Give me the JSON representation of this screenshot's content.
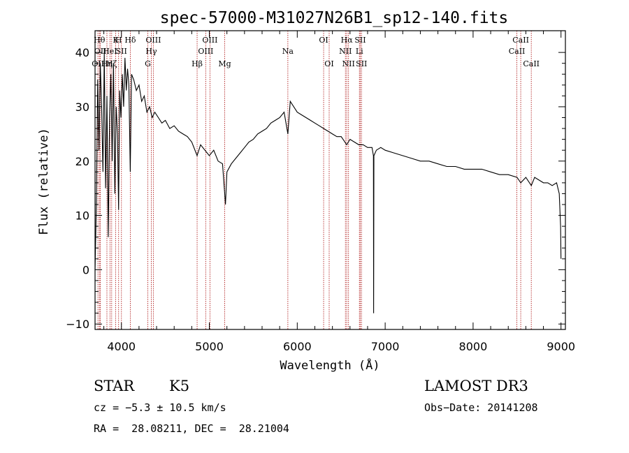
{
  "chart_data": {
    "type": "line",
    "title": "spec-57000-M31027N26B1_sp12-140.fits",
    "xlabel": "Wavelength (Å)",
    "ylabel": "Flux (relative)",
    "xlim": [
      3700,
      9050
    ],
    "ylim": [
      -11,
      44
    ],
    "xticks": [
      4000,
      5000,
      6000,
      7000,
      8000,
      9000
    ],
    "yticks": [
      -10,
      0,
      10,
      20,
      30,
      40
    ],
    "grid": false,
    "series": [
      {
        "values_xy": [
          [
            3700,
            0
          ],
          [
            3715,
            12
          ],
          [
            3730,
            35
          ],
          [
            3745,
            22
          ],
          [
            3760,
            38
          ],
          [
            3775,
            30
          ],
          [
            3790,
            18
          ],
          [
            3805,
            40
          ],
          [
            3820,
            15
          ],
          [
            3835,
            32
          ],
          [
            3850,
            6
          ],
          [
            3865,
            28
          ],
          [
            3880,
            36
          ],
          [
            3895,
            20
          ],
          [
            3910,
            38
          ],
          [
            3925,
            14
          ],
          [
            3940,
            30
          ],
          [
            3955,
            25
          ],
          [
            3968,
            11
          ],
          [
            3980,
            33
          ],
          [
            3995,
            28
          ],
          [
            4010,
            36
          ],
          [
            4025,
            30
          ],
          [
            4040,
            39
          ],
          [
            4055,
            33
          ],
          [
            4070,
            37
          ],
          [
            4085,
            34
          ],
          [
            4101,
            18
          ],
          [
            4115,
            36
          ],
          [
            4140,
            35
          ],
          [
            4170,
            33
          ],
          [
            4200,
            34
          ],
          [
            4230,
            31
          ],
          [
            4260,
            32
          ],
          [
            4290,
            29
          ],
          [
            4320,
            30
          ],
          [
            4350,
            28
          ],
          [
            4380,
            29
          ],
          [
            4420,
            28
          ],
          [
            4460,
            27
          ],
          [
            4500,
            27.5
          ],
          [
            4550,
            26
          ],
          [
            4600,
            26.5
          ],
          [
            4650,
            25.5
          ],
          [
            4700,
            25
          ],
          [
            4750,
            24.5
          ],
          [
            4800,
            23.5
          ],
          [
            4861,
            21
          ],
          [
            4900,
            23
          ],
          [
            4950,
            22
          ],
          [
            5000,
            21
          ],
          [
            5050,
            22
          ],
          [
            5100,
            20
          ],
          [
            5150,
            19.5
          ],
          [
            5175,
            14
          ],
          [
            5183,
            12
          ],
          [
            5200,
            18
          ],
          [
            5250,
            19.5
          ],
          [
            5300,
            20.5
          ],
          [
            5350,
            21.5
          ],
          [
            5400,
            22.5
          ],
          [
            5450,
            23.5
          ],
          [
            5500,
            24
          ],
          [
            5550,
            25
          ],
          [
            5600,
            25.5
          ],
          [
            5650,
            26
          ],
          [
            5700,
            27
          ],
          [
            5750,
            27.5
          ],
          [
            5800,
            28
          ],
          [
            5850,
            29
          ],
          [
            5893,
            25
          ],
          [
            5920,
            31
          ],
          [
            5960,
            30
          ],
          [
            6000,
            29
          ],
          [
            6050,
            28.5
          ],
          [
            6100,
            28
          ],
          [
            6150,
            27.5
          ],
          [
            6200,
            27
          ],
          [
            6250,
            26.5
          ],
          [
            6300,
            26
          ],
          [
            6350,
            25.5
          ],
          [
            6400,
            25
          ],
          [
            6450,
            24.5
          ],
          [
            6500,
            24.5
          ],
          [
            6563,
            23
          ],
          [
            6600,
            24
          ],
          [
            6650,
            23.5
          ],
          [
            6700,
            23
          ],
          [
            6750,
            23
          ],
          [
            6800,
            22.5
          ],
          [
            6850,
            22.5
          ],
          [
            6866,
            21
          ],
          [
            6869,
            -8
          ],
          [
            6872,
            21
          ],
          [
            6900,
            22
          ],
          [
            6950,
            22.5
          ],
          [
            7000,
            22
          ],
          [
            7100,
            21.5
          ],
          [
            7200,
            21
          ],
          [
            7300,
            20.5
          ],
          [
            7400,
            20
          ],
          [
            7500,
            20
          ],
          [
            7600,
            19.5
          ],
          [
            7700,
            19
          ],
          [
            7800,
            19
          ],
          [
            7900,
            18.5
          ],
          [
            8000,
            18.5
          ],
          [
            8100,
            18.5
          ],
          [
            8200,
            18
          ],
          [
            8300,
            17.5
          ],
          [
            8400,
            17.5
          ],
          [
            8500,
            17
          ],
          [
            8542,
            16
          ],
          [
            8600,
            17
          ],
          [
            8662,
            15.5
          ],
          [
            8700,
            17
          ],
          [
            8750,
            16.5
          ],
          [
            8800,
            16
          ],
          [
            8850,
            16
          ],
          [
            8900,
            15.5
          ],
          [
            8950,
            16
          ],
          [
            8980,
            14
          ],
          [
            8995,
            8
          ],
          [
            9000,
            2
          ]
        ]
      }
    ],
    "lines": [
      {
        "wave": 3733,
        "label": "OII",
        "row": 3
      },
      {
        "wave": 3750,
        "label": "Hθ",
        "row": 1
      },
      {
        "wave": 3760,
        "label": "OII",
        "row": 2
      },
      {
        "wave": 3835,
        "label": "Hη",
        "row": 3
      },
      {
        "wave": 3870,
        "label": "HeI",
        "row": 2
      },
      {
        "wave": 3889,
        "label": "Hζ",
        "row": 3
      },
      {
        "wave": 3934,
        "label": "K",
        "row": 1
      },
      {
        "wave": 3968,
        "label": "H",
        "row": 1
      },
      {
        "wave": 4000,
        "label": "SII",
        "row": 2
      },
      {
        "wave": 4101,
        "label": "Hδ",
        "row": 1
      },
      {
        "wave": 4300,
        "label": "G",
        "row": 3
      },
      {
        "wave": 4340,
        "label": "Hγ",
        "row": 2
      },
      {
        "wave": 4363,
        "label": "OIII",
        "row": 1
      },
      {
        "wave": 4861,
        "label": "Hβ",
        "row": 3
      },
      {
        "wave": 4959,
        "label": "OIII",
        "row": 2
      },
      {
        "wave": 5007,
        "label": "OIII",
        "row": 1
      },
      {
        "wave": 5175,
        "label": "Mg",
        "row": 3
      },
      {
        "wave": 5893,
        "label": "Na",
        "row": 2
      },
      {
        "wave": 6300,
        "label": "OI",
        "row": 1
      },
      {
        "wave": 6363,
        "label": "OI",
        "row": 3
      },
      {
        "wave": 6548,
        "label": "NII",
        "row": 2
      },
      {
        "wave": 6563,
        "label": "Hα",
        "row": 1
      },
      {
        "wave": 6583,
        "label": "NII",
        "row": 3
      },
      {
        "wave": 6707,
        "label": "Li",
        "row": 2
      },
      {
        "wave": 6717,
        "label": "SII",
        "row": 1
      },
      {
        "wave": 6731,
        "label": "SII",
        "row": 3
      },
      {
        "wave": 8498,
        "label": "CaII",
        "row": 2
      },
      {
        "wave": 8542,
        "label": "CaII",
        "row": 1
      },
      {
        "wave": 8662,
        "label": "CaII",
        "row": 3
      }
    ],
    "line_color": "#000000",
    "marker_color": "#b22222"
  },
  "info": {
    "object_class": "STAR",
    "subclass": "K5",
    "survey": "LAMOST DR3",
    "cz": "cz = −5.3 ± 10.5 km/s",
    "obs_date": "Obs−Date: 20141208",
    "coords": "RA =  28.08211, DEC =  28.21004"
  }
}
